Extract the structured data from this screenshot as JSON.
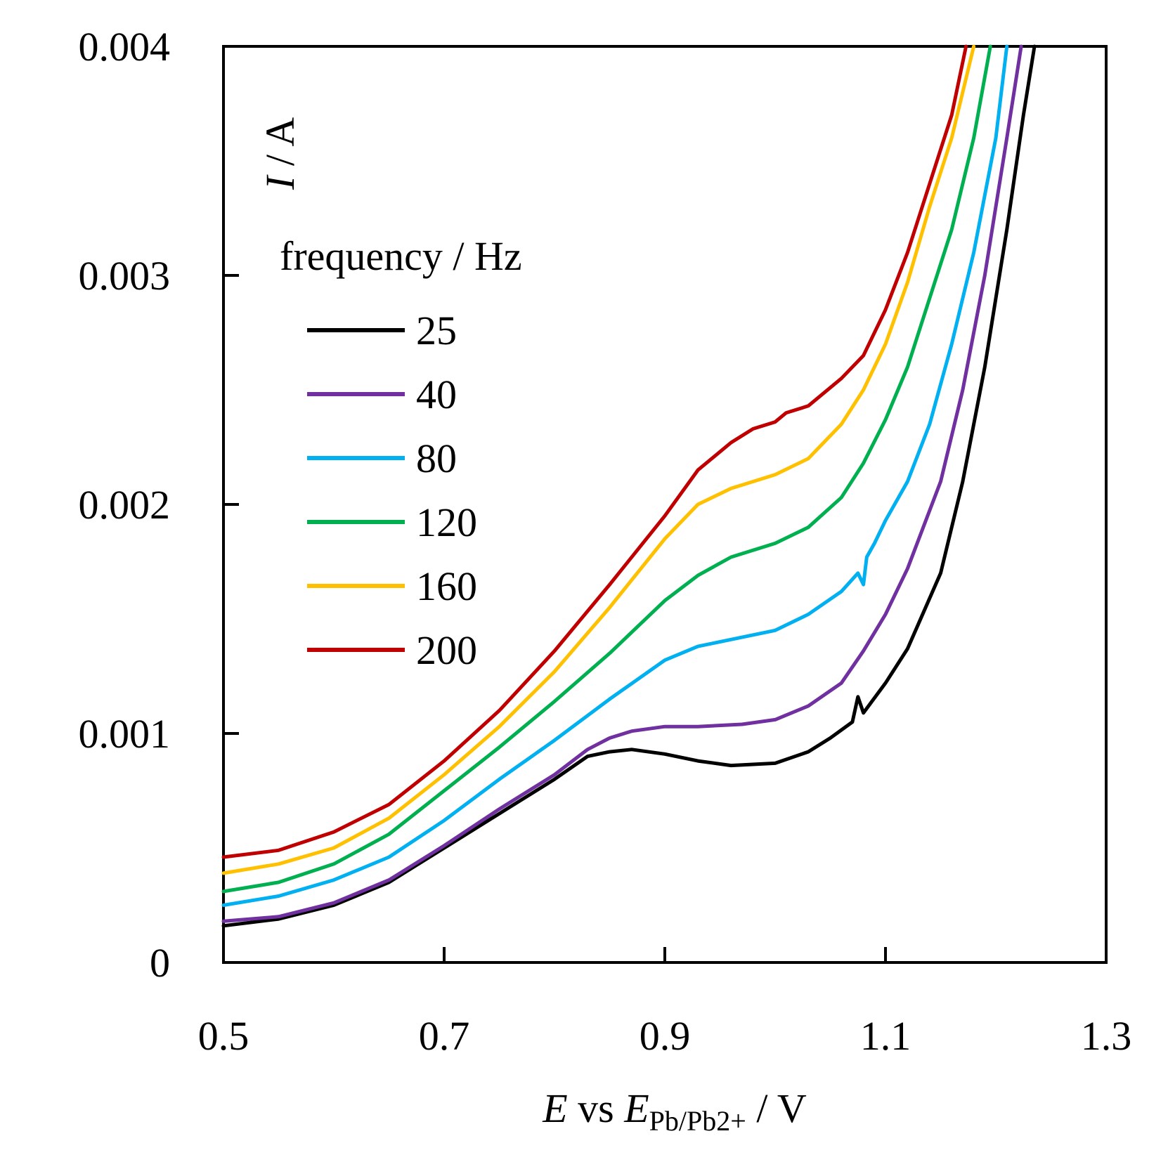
{
  "chart_data": {
    "type": "line",
    "title": "",
    "xlabel": {
      "var": "E",
      "mid": " vs ",
      "var2": "E",
      "sub": "Pb/Pb2+",
      "unit": " / V"
    },
    "ylabel": {
      "var": "I",
      "unit": " / A"
    },
    "xlim": [
      0.5,
      1.3
    ],
    "ylim": [
      0,
      0.004
    ],
    "xticks": [
      0.5,
      0.7,
      0.9,
      1.1,
      1.3
    ],
    "xtick_labels": [
      "0.5",
      "0.7",
      "0.9",
      "1.1",
      "1.3"
    ],
    "yticks": [
      0,
      0.001,
      0.002,
      0.003,
      0.004
    ],
    "ytick_labels": [
      "0",
      "0.001",
      "0.002",
      "0.003",
      "0.004"
    ],
    "grid": false,
    "legend": {
      "title": "frequency / Hz",
      "position": "upper-left"
    },
    "series": [
      {
        "name": "25",
        "color": "#000000",
        "x": [
          0.5,
          0.55,
          0.6,
          0.65,
          0.7,
          0.75,
          0.8,
          0.83,
          0.85,
          0.87,
          0.9,
          0.93,
          0.96,
          1.0,
          1.03,
          1.05,
          1.07,
          1.075,
          1.08,
          1.1,
          1.12,
          1.15,
          1.17,
          1.19,
          1.21,
          1.225,
          1.235
        ],
        "y": [
          0.00016,
          0.00019,
          0.00025,
          0.00035,
          0.0005,
          0.00065,
          0.0008,
          0.0009,
          0.00092,
          0.00093,
          0.00091,
          0.00088,
          0.00086,
          0.00087,
          0.00092,
          0.00098,
          0.00105,
          0.00116,
          0.00109,
          0.00122,
          0.00137,
          0.0017,
          0.0021,
          0.0026,
          0.0032,
          0.0037,
          0.004
        ]
      },
      {
        "name": "40",
        "color": "#7030a0",
        "x": [
          0.5,
          0.55,
          0.6,
          0.65,
          0.7,
          0.75,
          0.8,
          0.83,
          0.85,
          0.87,
          0.9,
          0.93,
          0.97,
          1.0,
          1.03,
          1.06,
          1.08,
          1.1,
          1.12,
          1.15,
          1.17,
          1.19,
          1.21,
          1.223
        ],
        "y": [
          0.00018,
          0.0002,
          0.00026,
          0.00036,
          0.00051,
          0.00067,
          0.00082,
          0.00093,
          0.00098,
          0.00101,
          0.00103,
          0.00103,
          0.00104,
          0.00106,
          0.00112,
          0.00122,
          0.00136,
          0.00152,
          0.00172,
          0.0021,
          0.0025,
          0.003,
          0.0036,
          0.004
        ]
      },
      {
        "name": "80",
        "color": "#00b0f0",
        "x": [
          0.5,
          0.55,
          0.6,
          0.65,
          0.7,
          0.75,
          0.8,
          0.85,
          0.9,
          0.93,
          0.96,
          1.0,
          1.03,
          1.06,
          1.075,
          1.08,
          1.083,
          1.09,
          1.1,
          1.12,
          1.14,
          1.16,
          1.18,
          1.2,
          1.21
        ],
        "y": [
          0.00025,
          0.00029,
          0.00036,
          0.00046,
          0.00062,
          0.0008,
          0.00097,
          0.00115,
          0.00132,
          0.00138,
          0.00141,
          0.00145,
          0.00152,
          0.00162,
          0.0017,
          0.00165,
          0.00177,
          0.00183,
          0.00193,
          0.0021,
          0.00235,
          0.0027,
          0.0031,
          0.0036,
          0.004
        ]
      },
      {
        "name": "120",
        "color": "#00b050",
        "x": [
          0.5,
          0.55,
          0.6,
          0.65,
          0.7,
          0.75,
          0.8,
          0.85,
          0.9,
          0.93,
          0.96,
          1.0,
          1.03,
          1.06,
          1.08,
          1.1,
          1.12,
          1.14,
          1.16,
          1.18,
          1.195
        ],
        "y": [
          0.00031,
          0.00035,
          0.00043,
          0.00056,
          0.00075,
          0.00094,
          0.00114,
          0.00135,
          0.00158,
          0.00169,
          0.00177,
          0.00183,
          0.0019,
          0.00203,
          0.00218,
          0.00237,
          0.0026,
          0.0029,
          0.0032,
          0.0036,
          0.004
        ]
      },
      {
        "name": "160",
        "color": "#ffc000",
        "x": [
          0.5,
          0.55,
          0.6,
          0.65,
          0.7,
          0.75,
          0.8,
          0.85,
          0.9,
          0.93,
          0.96,
          1.0,
          1.03,
          1.06,
          1.08,
          1.1,
          1.12,
          1.14,
          1.16,
          1.18
        ],
        "y": [
          0.00039,
          0.00043,
          0.0005,
          0.00063,
          0.00082,
          0.00103,
          0.00127,
          0.00155,
          0.00185,
          0.002,
          0.00207,
          0.00213,
          0.0022,
          0.00235,
          0.0025,
          0.0027,
          0.00297,
          0.0033,
          0.0036,
          0.004
        ]
      },
      {
        "name": "200",
        "color": "#c00000",
        "x": [
          0.5,
          0.55,
          0.6,
          0.65,
          0.7,
          0.75,
          0.8,
          0.85,
          0.9,
          0.93,
          0.96,
          0.98,
          1.0,
          1.01,
          1.03,
          1.06,
          1.08,
          1.1,
          1.12,
          1.14,
          1.16,
          1.173
        ],
        "y": [
          0.00046,
          0.00049,
          0.00057,
          0.00069,
          0.00088,
          0.0011,
          0.00136,
          0.00165,
          0.00195,
          0.00215,
          0.00227,
          0.00233,
          0.00236,
          0.0024,
          0.00243,
          0.00255,
          0.00265,
          0.00285,
          0.0031,
          0.0034,
          0.0037,
          0.004
        ]
      }
    ]
  }
}
